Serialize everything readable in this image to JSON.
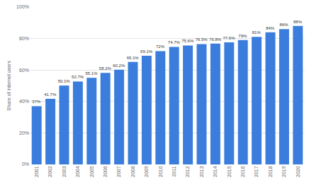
{
  "chart_data": {
    "type": "bar",
    "y_label": "Share of internet users",
    "categories": [
      "2001",
      "2002",
      "2003",
      "2004",
      "2005",
      "2006",
      "2007",
      "2008",
      "2009",
      "2010",
      "2011",
      "2012",
      "2013",
      "2014",
      "2015",
      "2016",
      "2017",
      "2018",
      "2019",
      "2020"
    ],
    "values": [
      37,
      41.7,
      50.1,
      52.7,
      55.1,
      58.2,
      60.2,
      65.1,
      69.1,
      72,
      74.7,
      75.6,
      76.5,
      76.8,
      77.6,
      79,
      81,
      84,
      86,
      88
    ],
    "value_labels": [
      "37%",
      "41.7%",
      "50.1%",
      "52.7%",
      "55.1%",
      "58.2%",
      "60.2%",
      "65.1%",
      "69.1%",
      "72%",
      "74.7%",
      "75.6%",
      "76.5%",
      "76.8%",
      "77.6%",
      "79%",
      "81%",
      "84%",
      "86%",
      "88%"
    ],
    "color": "#3b7ddd",
    "ylim": [
      0,
      100
    ],
    "yticks": [
      {
        "value": 0,
        "label": "0%"
      },
      {
        "value": 20,
        "label": "20%"
      },
      {
        "value": 40,
        "label": "40%"
      },
      {
        "value": 60,
        "label": "60%"
      },
      {
        "value": 80,
        "label": "80%"
      },
      {
        "value": 100,
        "label": "100%"
      }
    ],
    "grid": true,
    "data_labels": true
  }
}
